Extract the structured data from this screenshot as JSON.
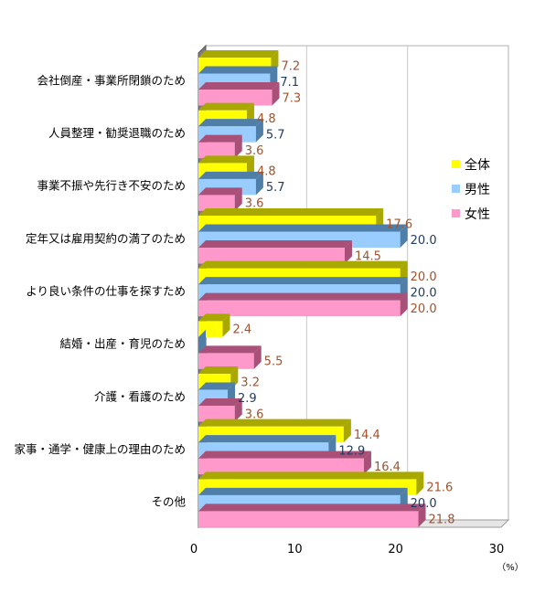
{
  "chart_data": {
    "type": "bar",
    "orientation": "horizontal",
    "style": "3d",
    "categories": [
      "会社倒産・事業所閉鎖のため",
      "人員整理・勧奨退職のため",
      "事業不振や先行き不安のため",
      "定年又は雇用契約の満了のため",
      "より良い条件の仕事を探すため",
      "結婚・出産・育児のため",
      "介護・看護のため",
      "家事・通学・健康上の理由のため",
      "その他"
    ],
    "series": [
      {
        "name": "全体",
        "color": "#FFFF00",
        "side_color": "#A8A800",
        "label_color": "#A0522D",
        "values": [
          7.2,
          4.8,
          4.8,
          17.6,
          20.0,
          2.4,
          3.2,
          14.4,
          21.6
        ],
        "labels": [
          "7.2",
          "4.8",
          "4.8",
          "17.6",
          "20.0",
          "2.4",
          "3.2",
          "14.4",
          "21.6"
        ]
      },
      {
        "name": "男性",
        "color": "#99CCFF",
        "side_color": "#4F7FA8",
        "label_color": "#1F3A5F",
        "values": [
          7.1,
          5.7,
          5.7,
          20.0,
          20.0,
          0,
          2.9,
          12.9,
          20.0
        ],
        "labels": [
          "7.1",
          "5.7",
          "5.7",
          "20.0",
          "20.0",
          "",
          "2.9",
          "12.9",
          "20.0"
        ]
      },
      {
        "name": "女性",
        "color": "#FF99CC",
        "side_color": "#A85078",
        "label_color": "#A0522D",
        "values": [
          7.3,
          3.6,
          3.6,
          14.5,
          20.0,
          5.5,
          3.6,
          16.4,
          21.8
        ],
        "labels": [
          "7.3",
          "3.6",
          "3.6",
          "14.5",
          "20.0",
          "5.5",
          "3.6",
          "16.4",
          "21.8"
        ]
      }
    ],
    "xlim": [
      0,
      30
    ],
    "xticks": [
      "0",
      "10",
      "20",
      "30"
    ],
    "unit_label": "（%）",
    "grid": true,
    "legend_position": "right"
  }
}
